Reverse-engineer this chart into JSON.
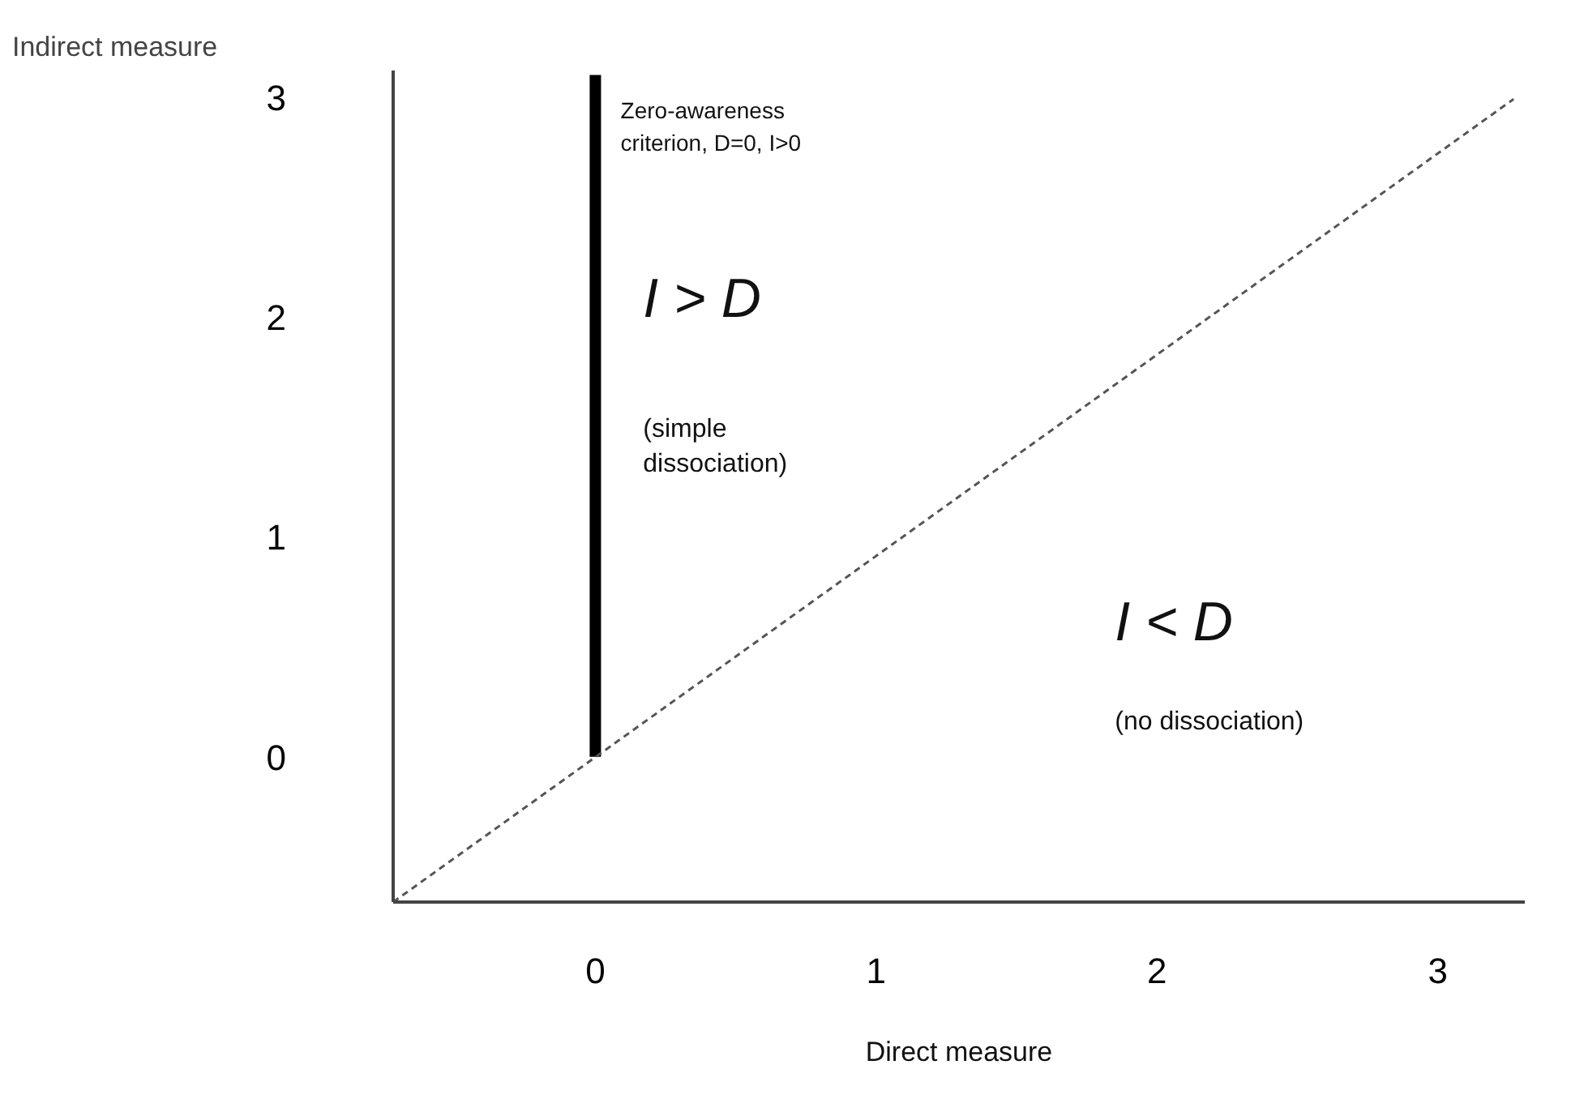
{
  "chart_data": {
    "type": "line",
    "xlabel": "Direct measure",
    "ylabel": "Indirect measure",
    "xlim": [
      -0.72,
      3.31
    ],
    "ylim": [
      -0.66,
      3.12
    ],
    "xticks": [
      0,
      1,
      2,
      3
    ],
    "yticks": [
      0,
      1,
      2,
      3
    ],
    "marker": "none",
    "series": [
      {
        "color": "#000000",
        "line_style": "solid",
        "x": [
          0,
          0,
          0,
          0
        ],
        "values": [
          0,
          1,
          2,
          3.1
        ]
      },
      {
        "color": "#555555",
        "line_style": "dashed",
        "x": [
          -0.72,
          3.27
        ],
        "values": [
          -0.66,
          2.99
        ]
      }
    ],
    "annotations": [
      "Zero-awareness\ncriterion, D=0, I>0",
      "I > D",
      "(simple\ndissociation)",
      "I < D",
      "(no dissociation)"
    ]
  }
}
